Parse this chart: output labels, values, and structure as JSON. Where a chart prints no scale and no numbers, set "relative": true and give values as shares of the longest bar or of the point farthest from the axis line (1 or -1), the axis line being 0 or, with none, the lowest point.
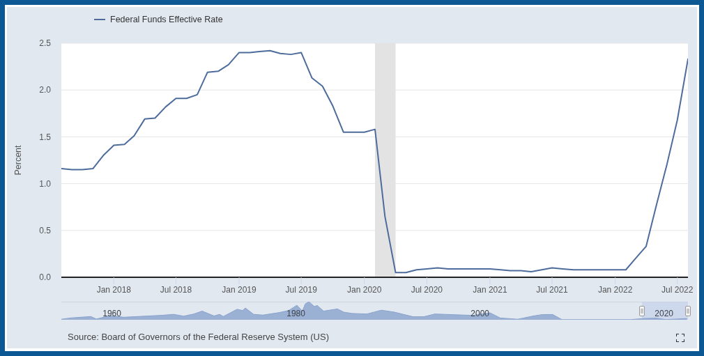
{
  "chart_data": [
    {
      "type": "line",
      "ylabel": "Percent",
      "x": [
        "2017-08",
        "2017-09",
        "2017-10",
        "2017-11",
        "2017-12",
        "2018-01",
        "2018-02",
        "2018-03",
        "2018-04",
        "2018-05",
        "2018-06",
        "2018-07",
        "2018-08",
        "2018-09",
        "2018-10",
        "2018-11",
        "2018-12",
        "2019-01",
        "2019-02",
        "2019-03",
        "2019-04",
        "2019-05",
        "2019-06",
        "2019-07",
        "2019-08",
        "2019-09",
        "2019-10",
        "2019-11",
        "2019-12",
        "2020-01",
        "2020-02",
        "2020-03",
        "2020-04",
        "2020-05",
        "2020-06",
        "2020-07",
        "2020-08",
        "2020-09",
        "2020-10",
        "2020-11",
        "2020-12",
        "2021-01",
        "2021-02",
        "2021-03",
        "2021-04",
        "2021-05",
        "2021-06",
        "2021-07",
        "2021-08",
        "2021-09",
        "2021-10",
        "2021-11",
        "2021-12",
        "2022-01",
        "2022-02",
        "2022-03",
        "2022-04",
        "2022-05",
        "2022-06",
        "2022-07",
        "2022-08"
      ],
      "series": [
        {
          "name": "Federal Funds Effective Rate",
          "color": "#4d6c9c",
          "values": [
            1.16,
            1.15,
            1.15,
            1.16,
            1.3,
            1.41,
            1.42,
            1.51,
            1.69,
            1.7,
            1.82,
            1.91,
            1.91,
            1.95,
            2.19,
            2.2,
            2.27,
            2.4,
            2.4,
            2.41,
            2.42,
            2.39,
            2.38,
            2.4,
            2.13,
            2.04,
            1.83,
            1.55,
            1.55,
            1.55,
            1.58,
            0.65,
            0.05,
            0.05,
            0.08,
            0.09,
            0.1,
            0.09,
            0.09,
            0.09,
            0.09,
            0.09,
            0.08,
            0.07,
            0.07,
            0.06,
            0.08,
            0.1,
            0.09,
            0.08,
            0.08,
            0.08,
            0.08,
            0.08,
            0.08,
            0.2,
            0.33,
            0.77,
            1.21,
            1.68,
            2.33
          ]
        }
      ],
      "xlim": [
        "2017-08",
        "2022-08"
      ],
      "xticks": [
        {
          "value": "2018-01",
          "label": "Jan 2018"
        },
        {
          "value": "2018-07",
          "label": "Jul 2018"
        },
        {
          "value": "2019-01",
          "label": "Jan 2019"
        },
        {
          "value": "2019-07",
          "label": "Jul 2019"
        },
        {
          "value": "2020-01",
          "label": "Jan 2020"
        },
        {
          "value": "2020-07",
          "label": "Jul 2020"
        },
        {
          "value": "2021-01",
          "label": "Jan 2021"
        },
        {
          "value": "2021-07",
          "label": "Jul 2021"
        },
        {
          "value": "2022-01",
          "label": "Jan 2022"
        },
        {
          "value": "2022-07",
          "label": "Jul 2022"
        }
      ],
      "ylim": [
        0,
        2.5
      ],
      "yticks": [
        {
          "value": 0,
          "label": "0.0"
        },
        0.5,
        {
          "value": 1,
          "label": "1.0"
        },
        1.5,
        {
          "value": 2,
          "label": "2.0"
        },
        2.5
      ],
      "grid": "y",
      "legend": "top left",
      "marker": "none",
      "line_style": "solid",
      "bands": [
        {
          "axis": "x",
          "from": "2020-02",
          "to": "2020-04",
          "color": "#e3e3e3"
        }
      ],
      "annotations": [
        "Source: Board of Governors of the Federal Reserve System (US)"
      ]
    },
    {
      "type": "area",
      "relative": true,
      "color": "#8aa3cd",
      "x": [
        1954.5,
        1955.5,
        1957.7,
        1958.3,
        1959.8,
        1961.3,
        1965.5,
        1966.7,
        1967.8,
        1968.9,
        1969.8,
        1971.1,
        1971.7,
        1972.1,
        1973.6,
        1974.2,
        1974.5,
        1975.4,
        1976.4,
        1978.2,
        1979.2,
        1980.1,
        1980.7,
        1981.0,
        1981.4,
        1982.0,
        1982.3,
        1983.0,
        1984.5,
        1985.2,
        1986.1,
        1987.7,
        1989.3,
        1990.7,
        1992.7,
        1993.9,
        1995.1,
        1998.3,
        1999.2,
        2001.1,
        2002.2,
        2004.1,
        2005.8,
        2006.8,
        2007.9,
        2008.9,
        2016.4,
        2017.7,
        2019.2,
        2020.2,
        2022.5
      ],
      "values": [
        0.03,
        0.1,
        0.18,
        0.04,
        0.23,
        0.14,
        0.25,
        0.3,
        0.2,
        0.32,
        0.48,
        0.21,
        0.3,
        0.18,
        0.58,
        0.51,
        0.65,
        0.3,
        0.26,
        0.4,
        0.51,
        0.8,
        0.48,
        0.87,
        1,
        0.73,
        0.79,
        0.48,
        0.6,
        0.42,
        0.35,
        0.32,
        0.53,
        0.42,
        0.17,
        0.17,
        0.32,
        0.26,
        0.24,
        0.38,
        0.1,
        0.03,
        0.21,
        0.29,
        0.29,
        0.01,
        0.01,
        0.07,
        0.09,
        0.01,
        0.07
      ],
      "xlim": [
        1954.5,
        2022.6
      ],
      "xticks": [
        1960,
        1980,
        2000,
        2020
      ],
      "tick_labels": "x",
      "bands": [
        {
          "axis": "x",
          "from": 2017.6,
          "to": 2022.6,
          "color": "#c6d2ea"
        }
      ]
    }
  ]
}
